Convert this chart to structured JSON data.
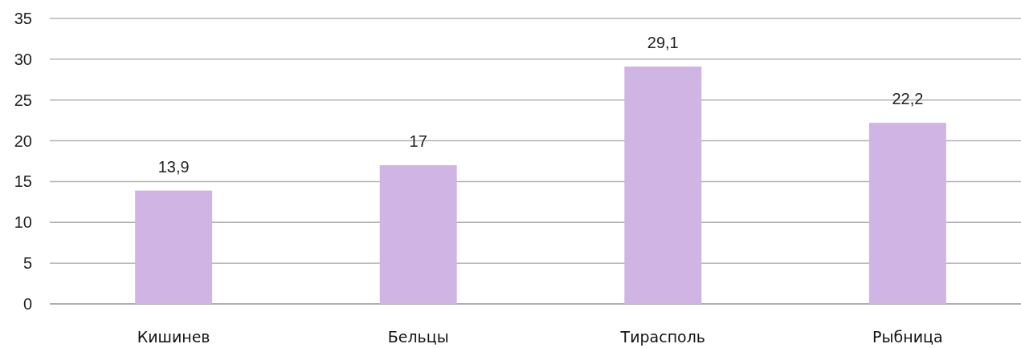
{
  "chart_data": {
    "type": "bar",
    "categories": [
      "Кишинев",
      "Бельцы",
      "Тирасполь",
      "Рыбница"
    ],
    "values": [
      13.9,
      17,
      29.1,
      22.2
    ],
    "value_labels": [
      "13,9",
      "17",
      "29,1",
      "22,2"
    ],
    "color": "#d0b4e3",
    "ylim": [
      0,
      35
    ],
    "yticks": [
      0,
      5,
      10,
      15,
      20,
      25,
      30,
      35
    ],
    "grid": "y"
  }
}
